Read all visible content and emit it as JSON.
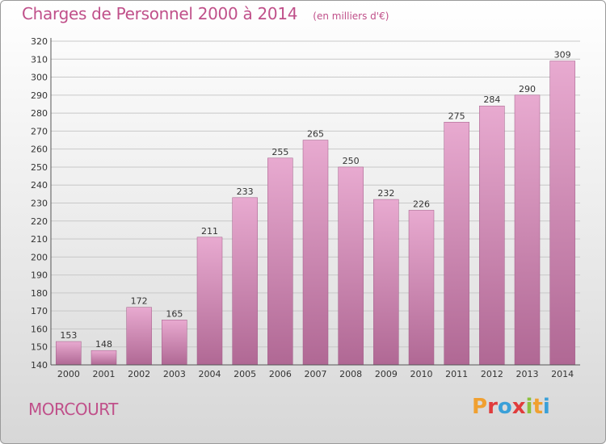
{
  "header": {
    "title": "Charges de Personnel 2000 à 2014",
    "unit": "(en milliers d'€)"
  },
  "footer": {
    "place": "MORCOURT",
    "logo_text": "Proxiti"
  },
  "colors": {
    "accent": "#c0508a",
    "bar_light": "#e6a6cc",
    "bar_dark": "#b46896"
  },
  "chart_data": {
    "type": "bar",
    "title": "Charges de Personnel 2000 à 2014",
    "subtitle": "(en milliers d'€)",
    "categories": [
      "2000",
      "2001",
      "2002",
      "2003",
      "2004",
      "2005",
      "2006",
      "2007",
      "2008",
      "2009",
      "2010",
      "2011",
      "2012",
      "2013",
      "2014"
    ],
    "values": [
      153,
      148,
      172,
      165,
      211,
      233,
      255,
      265,
      250,
      232,
      226,
      275,
      284,
      290,
      309
    ],
    "ylim": [
      140,
      320
    ],
    "yticks": [
      140,
      150,
      160,
      170,
      180,
      190,
      200,
      210,
      220,
      230,
      240,
      250,
      260,
      270,
      280,
      290,
      300,
      310,
      320
    ],
    "grid": true,
    "data_labels": true
  }
}
